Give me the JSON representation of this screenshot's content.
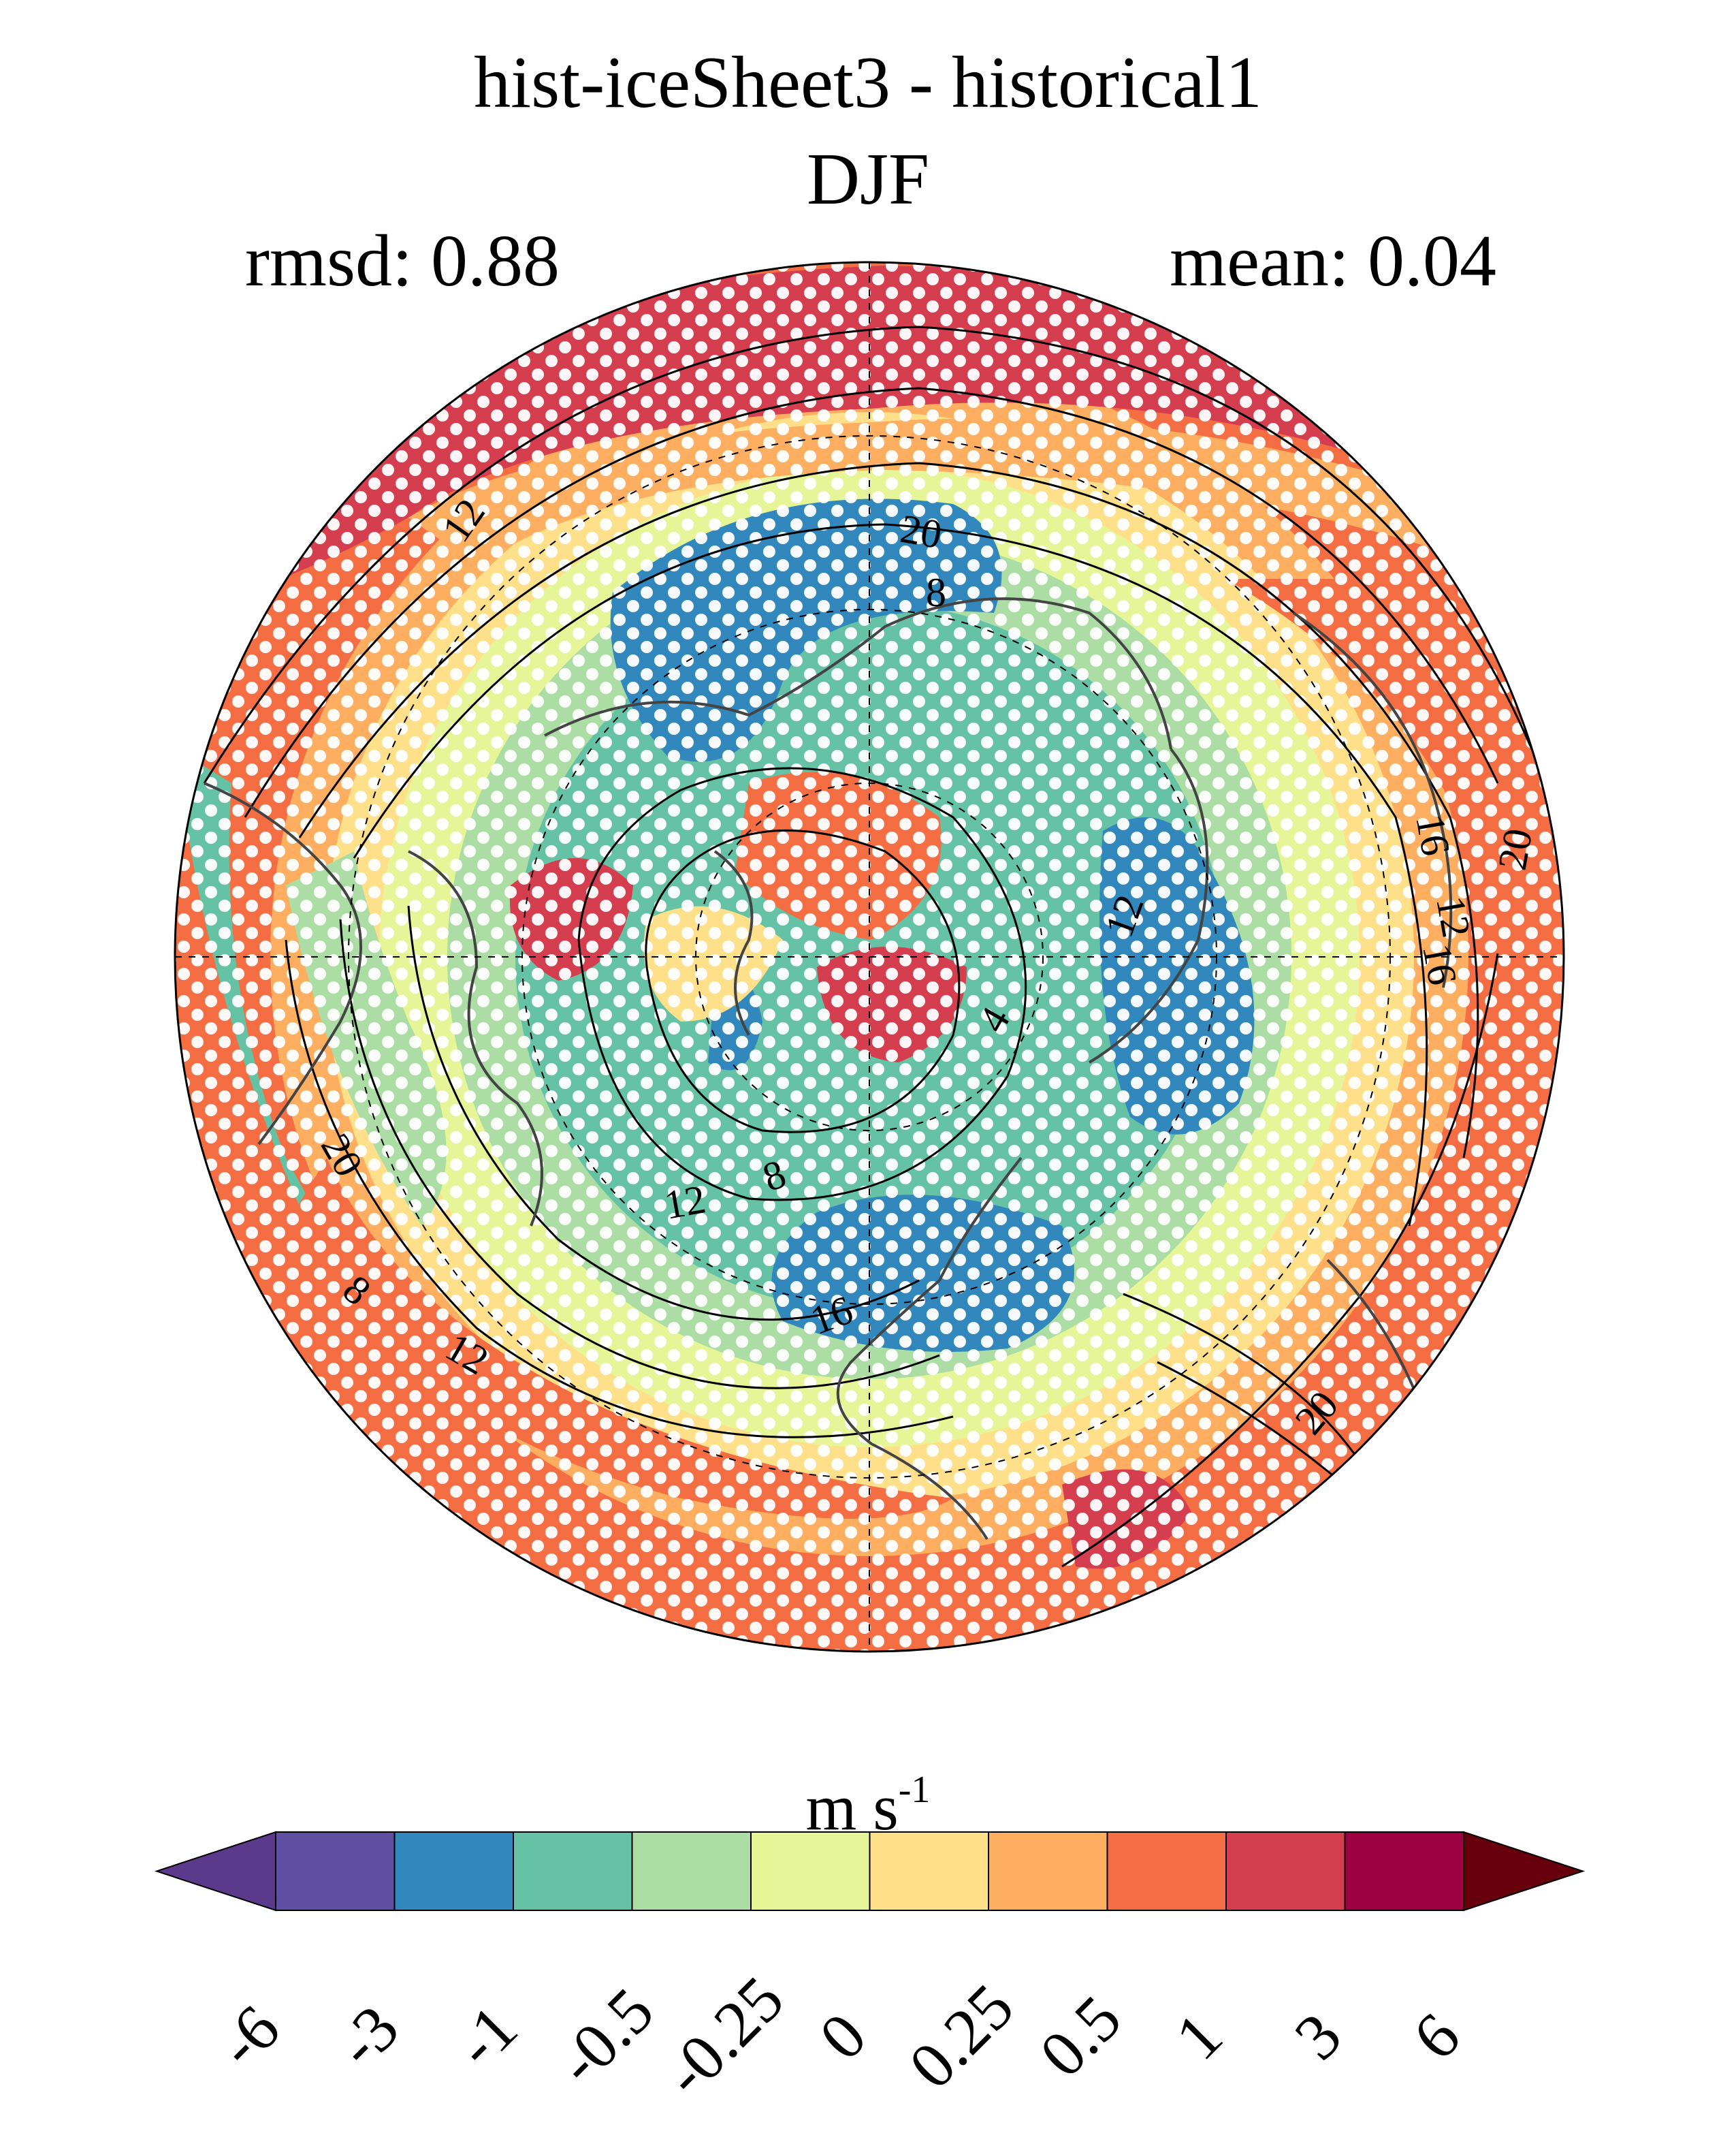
{
  "title": {
    "line1": "hist-iceSheet3 - historical1",
    "line2": "DJF"
  },
  "stats": {
    "rmsd": "rmsd: 0.88",
    "mean": "mean: 0.04"
  },
  "projection": "north-polar-stereographic",
  "features": [
    "filled difference field",
    "black contours (climatology)",
    "white stippling (significance)",
    "coastlines",
    "dashed graticule"
  ],
  "contour_labels": [
    "12",
    "20",
    "8",
    "16",
    "12",
    "4",
    "8",
    "12",
    "20",
    "8",
    "12",
    "16",
    "20",
    "16",
    "12",
    "20"
  ],
  "colorbar": {
    "unit_main": "m s",
    "unit_exp": "-1",
    "ticks": [
      "-6",
      "-3",
      "-1",
      "-0.5",
      "-0.25",
      "0",
      "0.25",
      "0.5",
      "1",
      "3",
      "6"
    ],
    "colors": [
      "#5e4fa2",
      "#3288bd",
      "#66c2a5",
      "#abdda4",
      "#e6f598",
      "#fee08b",
      "#fdae61",
      "#f46d43",
      "#d53e4f",
      "#9e0142"
    ],
    "under_color": "#5b3a8c",
    "over_color": "#67000d",
    "extend": "both"
  }
}
